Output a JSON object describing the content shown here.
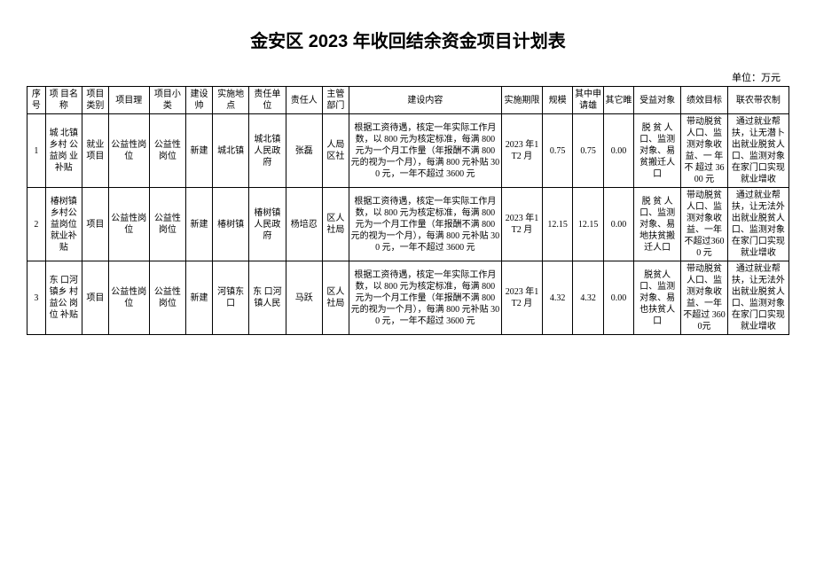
{
  "title": "金安区 2023 年收回结余资金项目计划表",
  "unit_label": "单位：万元",
  "headers": {
    "seq": "序号",
    "name": "项 目名称",
    "category": "项目类别",
    "type": "项目理",
    "subtype": "项目小类",
    "build": "建设帅",
    "location": "实施地点",
    "resp_unit": "责任单位",
    "resp_person": "责任人",
    "dept": "主管部门",
    "content": "建设内容",
    "period": "实施期限",
    "scale": "规模",
    "apply": "其中申请雄",
    "other": "其它睢",
    "beneficiary": "受益对象",
    "performance": "绩效目标",
    "mechanism": "联农带农制"
  },
  "rows": [
    {
      "seq": "1",
      "name": "城 北镇 乡村 公益岗\n业补贴",
      "category": "就业项目",
      "type": "公益性岗位",
      "subtype": "公益性岗位",
      "build": "新建",
      "location": "城北镇",
      "resp_unit": "城北镇人民政府",
      "resp_person": "张磊",
      "dept": "人局区社",
      "content": "根据工资待遇，核定一年实际工作月数，以 800 元为核定标准，每满 800 元为一个月工作量（年报酬不满 800 元的视为一个月），每满 800 元补贴 300 元，一年不超过 3600 元",
      "period": "2023 年1T2 月",
      "scale": "0.75",
      "apply": "0.75",
      "other": "0.00",
      "beneficiary": "脱 贫 人口、监测对象、易贫搬迁人口",
      "performance": "带动脱贫人口、监测对象收益、一 年 不 超过 3600 元",
      "mechanism": "通过就业帮扶，让无潜卜出就业脱贫人口、监测对象在家门口实现就业增收"
    },
    {
      "seq": "2",
      "name": "椿树镇乡村公益岗位就业补贴",
      "category": "项目",
      "type": "公益性岗位",
      "subtype": "公益性岗位",
      "build": "新建",
      "location": "椿树镇",
      "resp_unit": "椿树镇人民政府",
      "resp_person": "杨培忍",
      "dept": "区人社局",
      "content": "根据工资待遇，核定一年实际工作月数，以 800 元为核定标准，每满 800 元为一个月工作量（年报酬不满 800 元的视为一个月），每满 800 元补贴 300 元，一年不超过 3600 元",
      "period": "2023 年1T2 月",
      "scale": "12.15",
      "apply": "12.15",
      "other": "0.00",
      "beneficiary": "脱 贫 人口、监测对象、易地扶贫搬迁人口",
      "performance": "带动脱贫人口、监测对象收益、一年不超过3600 元",
      "mechanism": "通过就业帮扶，让无法外出就业脱贫人口、监测对象在家门口实现就业增收"
    },
    {
      "seq": "3",
      "name": "东 口河镇乡 村益公 岗位\n补贴",
      "category": "项目",
      "type": "公益性岗位",
      "subtype": "公益性岗位",
      "build": "新建",
      "location": "河镇东口",
      "resp_unit": "东 口河 镇人民",
      "resp_person": "马跃",
      "dept": "区人社局",
      "content": "根据工资待遇，核定一年实际工作月数，以 800 元为核定标准，每满 800 元为一个月工作量（年报酬不满 800 元的视为一个月），每满 800 元补贴 300 元，一年不超过 3600 元",
      "period": "2023 年1T2 月",
      "scale": "4.32",
      "apply": "4.32",
      "other": "0.00",
      "beneficiary": "脱贫人口、监测对象、易也扶贫人口",
      "performance": "带动脱贫人口、监测对象收益、一年 不超过 3600元",
      "mechanism": "通过就业帮扶，让无法外出就业脱贫人口、监测对象在家门口实现就业增收"
    }
  ]
}
